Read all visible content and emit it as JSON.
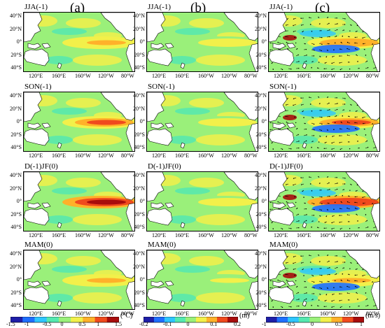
{
  "columns": [
    "(a)",
    "(b)",
    "(c)"
  ],
  "seasons": [
    "JJA(-1)",
    "SON(-1)",
    "D(-1)JF(0)",
    "MAM(0)"
  ],
  "lat_labels": [
    "40°N",
    "20°N",
    "0°",
    "20°S",
    "40°S"
  ],
  "lon_labels": [
    "120°E",
    "160°E",
    "160°W",
    "120°W",
    "80°W"
  ],
  "colorbars": [
    {
      "ticks": [
        "-1.5",
        "-1",
        "-0.5",
        "0",
        "0.5",
        "1",
        "1.5"
      ],
      "unit": "(°C)"
    },
    {
      "ticks": [
        "-0.2",
        "-0.1",
        "0",
        "0.1",
        "0.2"
      ],
      "unit": "(m)"
    },
    {
      "ticks": [
        "-1",
        "-0.5",
        "0",
        "0.5",
        "1"
      ],
      "unit": "(m/s)"
    }
  ],
  "colors": {
    "background_field": "#3fe07a",
    "colormap": [
      "#1e1ea8",
      "#1f6fff",
      "#2ec6ff",
      "#55e8b0",
      "#9af07a",
      "#f2f04a",
      "#ffb12a",
      "#f04a1e",
      "#a80c0c"
    ],
    "land": "#ffffff",
    "vector": "#000000"
  }
}
